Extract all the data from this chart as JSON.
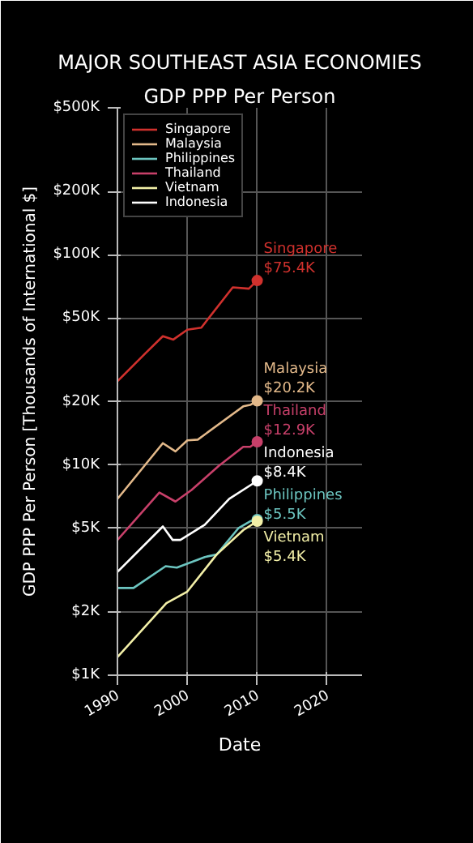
{
  "chart_data": {
    "type": "line",
    "title": "MAJOR SOUTHEAST ASIA ECONOMIES",
    "subtitle": "GDP PPP Per Person",
    "xlabel": "Date",
    "ylabel": "GDP PPP Per Person [Thousands of International $]",
    "log": "y",
    "grid": true,
    "legend": "top left",
    "xlim": [
      1990,
      2025
    ],
    "xticks": [
      1990,
      2000,
      2010,
      2020
    ],
    "ylim": [
      1000,
      500000
    ],
    "yticks": [
      {
        "value": 1000,
        "label": "$1K"
      },
      {
        "value": 2000,
        "label": "$2K"
      },
      {
        "value": 5000,
        "label": "$5K"
      },
      {
        "value": 10000,
        "label": "$10K"
      },
      {
        "value": 20000,
        "label": "$20K"
      },
      {
        "value": 50000,
        "label": "$50K"
      },
      {
        "value": 100000,
        "label": "$100K"
      },
      {
        "value": 200000,
        "label": "$200K"
      },
      {
        "value": 500000,
        "label": "$500K"
      }
    ],
    "series": [
      {
        "name": "Singapore",
        "color": "#d0312d",
        "x": [
          1990,
          1994,
          1996.5,
          1998,
          2000,
          2002,
          2006.5,
          2008.8,
          2010
        ],
        "values": [
          25000,
          34000,
          41000,
          39500,
          44000,
          45000,
          70000,
          69000,
          75400
        ]
      },
      {
        "name": "Malaysia",
        "color": "#e3b98a",
        "x": [
          1990,
          1996.5,
          1998.3,
          2000,
          2001.5,
          2008,
          2009,
          2010
        ],
        "values": [
          6900,
          12700,
          11600,
          13100,
          13200,
          19000,
          19300,
          20200
        ]
      },
      {
        "name": "Philippines",
        "color": "#6cc5c0",
        "x": [
          1990,
          1992.3,
          1996.9,
          1998.5,
          2002.5,
          2004.2,
          2007.3,
          2009,
          2010
        ],
        "values": [
          2600,
          2600,
          3300,
          3250,
          3650,
          3750,
          5000,
          5400,
          5500
        ]
      },
      {
        "name": "Thailand",
        "color": "#c8406a",
        "x": [
          1990,
          1996,
          1998.3,
          2000.6,
          2004.5,
          2008,
          2009,
          2010
        ],
        "values": [
          4400,
          7400,
          6700,
          7600,
          9900,
          12200,
          12200,
          12900
        ]
      },
      {
        "name": "Vietnam",
        "color": "#f3f0a8",
        "x": [
          1990,
          1997,
          2000,
          2004.2,
          2008,
          2010
        ],
        "values": [
          1220,
          2200,
          2500,
          3750,
          4900,
          5400
        ]
      },
      {
        "name": "Indonesia",
        "color": "#ffffff",
        "x": [
          1990,
          1996.5,
          1997.9,
          1999,
          2002.5,
          2006,
          2010
        ],
        "values": [
          3100,
          5100,
          4400,
          4400,
          5200,
          6900,
          8400
        ]
      }
    ],
    "annotations": [
      "Singapore\n$75.4K",
      "Malaysia\n$20.2K",
      "Philippines\n$5.5K",
      "Thailand\n$12.9K",
      "Vietnam\n$5.4K",
      "Indonesia\n$8.4K"
    ]
  }
}
